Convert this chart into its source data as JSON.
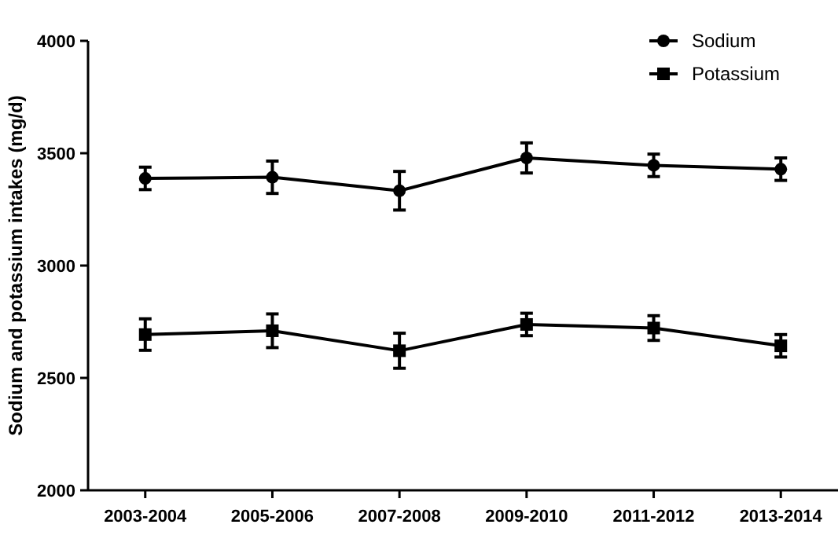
{
  "chart_data": {
    "type": "line",
    "ylabel": "Sodium and potassium intakes (mg/d)",
    "categories": [
      "2003-2004",
      "2005-2006",
      "2007-2008",
      "2009-2010",
      "2011-2012",
      "2013-2014"
    ],
    "ylim": [
      2000,
      4000
    ],
    "yticks": [
      2000,
      2500,
      3000,
      3500,
      4000
    ],
    "grid": false,
    "legend": "top right",
    "series": [
      {
        "name": "Sodium",
        "color": "#000000",
        "marker": "circle",
        "values": [
          3388,
          3393,
          3333,
          3479,
          3446,
          3429
        ],
        "errors": [
          50,
          72,
          86,
          67,
          50,
          50
        ]
      },
      {
        "name": "Potassium",
        "color": "#000000",
        "marker": "square",
        "values": [
          2693,
          2710,
          2621,
          2738,
          2722,
          2643
        ],
        "errors": [
          70,
          75,
          78,
          50,
          55,
          50
        ]
      }
    ]
  }
}
